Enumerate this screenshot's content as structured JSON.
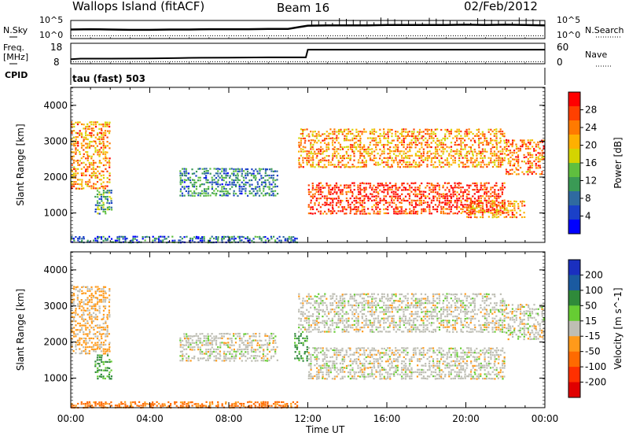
{
  "header": {
    "station": "Wallops Island (fitACF)",
    "beam": "Beam 16",
    "date": "02/Feb/2012"
  },
  "top_panel": {
    "left_label": "N.Sky",
    "right_label": "N.Search",
    "left_ticks": [
      "10^5",
      "10^0"
    ],
    "right_ticks": [
      "10^5",
      "10^0"
    ]
  },
  "freq_panel": {
    "left_label_1": "Freq.",
    "left_label_2": "[MHz]",
    "right_label": "Nave",
    "left_ticks": [
      "18",
      "8"
    ],
    "right_ticks": [
      "60",
      "0"
    ]
  },
  "cpid_panel": {
    "label": "CPID",
    "value": "tau (fast) 503"
  },
  "x_axis": {
    "ticks": [
      "00:00",
      "04:00",
      "08:00",
      "12:00",
      "16:00",
      "20:00",
      "00:00"
    ],
    "label": "Time UT"
  },
  "colorbars": {
    "power": {
      "label": "Power [dB]",
      "ticks": [
        "28",
        "24",
        "20",
        "16",
        "12",
        "8",
        "4"
      ],
      "colors": [
        "#ff0000",
        "#ff4000",
        "#ff7a00",
        "#ffb000",
        "#d4d400",
        "#5fbf3f",
        "#3a9a55",
        "#2f6aa0",
        "#1a40c8",
        "#0000ff"
      ]
    },
    "velocity": {
      "label": "Velocity [m s^-1]",
      "ticks": [
        "200",
        "100",
        "50",
        "15",
        "-15",
        "-50",
        "-100",
        "-200"
      ],
      "colors": [
        "#1a2fbf",
        "#1a5aa0",
        "#2f8a3a",
        "#66cc33",
        "#bebeb4",
        "#ff9a1a",
        "#ff6a00",
        "#ff3000",
        "#e00000"
      ]
    }
  },
  "chart_data": [
    {
      "type": "line",
      "title": "N.Sky / N.Search",
      "x": [
        0,
        1,
        2,
        3,
        4,
        5,
        6,
        7,
        8,
        9,
        10,
        11,
        12,
        13,
        14,
        15,
        16,
        17,
        18,
        19,
        20,
        21,
        22,
        23,
        24
      ],
      "series": [
        {
          "name": "N.Sky",
          "values": [
            2.5,
            2.6,
            2.5,
            2.4,
            2.4,
            2.5,
            2.5,
            2.6,
            2.6,
            2.6,
            2.7,
            2.7,
            3.8,
            3.9,
            3.9,
            3.9,
            4.0,
            4.0,
            4.0,
            4.0,
            4.1,
            4.0,
            4.1,
            4.0,
            3.9
          ]
        },
        {
          "name": "N.Search",
          "values": [
            0.4,
            0.4,
            0.4,
            0.4,
            0.4,
            0.4,
            0.4,
            0.4,
            0.4,
            0.4,
            0.4,
            0.4,
            0.4,
            0.4,
            0.4,
            0.4,
            0.4,
            0.4,
            0.4,
            0.4,
            0.4,
            0.4,
            0.4,
            0.4,
            0.4
          ]
        }
      ],
      "ylim": [
        0,
        5
      ]
    },
    {
      "type": "line",
      "title": "Freq. / Nave",
      "x": [
        0,
        0.5,
        2,
        4,
        5.5,
        6,
        8,
        10,
        11.9,
        12,
        14,
        16,
        18,
        20,
        22,
        24
      ],
      "series": [
        {
          "name": "Freq. [MHz]",
          "values": [
            10.2,
            10.5,
            10.5,
            10.6,
            10.8,
            10.9,
            11.0,
            11.1,
            11.1,
            14.9,
            14.9,
            14.9,
            14.9,
            14.9,
            14.9,
            14.9
          ]
        },
        {
          "name": "Nave",
          "values": [
            6,
            6,
            6,
            6,
            6,
            6,
            6,
            6,
            6,
            6,
            6,
            6,
            6,
            6,
            6,
            6
          ]
        }
      ],
      "ylim": [
        8,
        18
      ]
    },
    {
      "type": "heatmap",
      "title": "Power [dB]",
      "xlabel": "Time UT",
      "ylabel": "Slant Range [km]",
      "xlim": [
        0,
        24
      ],
      "ylim": [
        180,
        4500
      ],
      "x_ticks": [
        "00:00",
        "04:00",
        "08:00",
        "12:00",
        "16:00",
        "20:00",
        "00:00"
      ],
      "y_ticks": [
        1000,
        2000,
        3000,
        4000
      ],
      "echo_bands": [
        {
          "t_start": 0.0,
          "t_end": 2.0,
          "range_start": 1700,
          "range_end": 3600,
          "power": 22
        },
        {
          "t_start": 1.2,
          "t_end": 2.1,
          "range_start": 1000,
          "range_end": 1700,
          "power": 10
        },
        {
          "t_start": 5.5,
          "t_end": 10.5,
          "range_start": 1500,
          "range_end": 2300,
          "power": 8
        },
        {
          "t_start": 0.0,
          "t_end": 11.5,
          "range_start": 200,
          "range_end": 400,
          "power": 6
        },
        {
          "t_start": 11.5,
          "t_end": 22.0,
          "range_start": 2300,
          "range_end": 3400,
          "power": 22
        },
        {
          "t_start": 12.0,
          "t_end": 22.0,
          "range_start": 1000,
          "range_end": 1900,
          "power": 28
        },
        {
          "t_start": 22.0,
          "t_end": 24.0,
          "range_start": 2100,
          "range_end": 3100,
          "power": 24
        },
        {
          "t_start": 20.0,
          "t_end": 23.0,
          "range_start": 900,
          "range_end": 1400,
          "power": 22
        }
      ]
    },
    {
      "type": "heatmap",
      "title": "Velocity [m s^-1]",
      "xlabel": "Time UT",
      "ylabel": "Slant Range [km]",
      "xlim": [
        0,
        24
      ],
      "ylim": [
        180,
        4500
      ],
      "x_ticks": [
        "00:00",
        "04:00",
        "08:00",
        "12:00",
        "16:00",
        "20:00",
        "00:00"
      ],
      "y_ticks": [
        1000,
        2000,
        3000,
        4000
      ],
      "echo_bands": [
        {
          "t_start": 0.0,
          "t_end": 2.0,
          "range_start": 1700,
          "range_end": 3600,
          "velocity": -20
        },
        {
          "t_start": 1.2,
          "t_end": 2.1,
          "range_start": 1000,
          "range_end": 1700,
          "velocity": 50
        },
        {
          "t_start": 5.5,
          "t_end": 10.5,
          "range_start": 1500,
          "range_end": 2300,
          "velocity": 0
        },
        {
          "t_start": 0.0,
          "t_end": 11.5,
          "range_start": 200,
          "range_end": 400,
          "velocity": -60
        },
        {
          "t_start": 11.5,
          "t_end": 22.0,
          "range_start": 2300,
          "range_end": 3400,
          "velocity": 0
        },
        {
          "t_start": 12.0,
          "t_end": 22.0,
          "range_start": 1000,
          "range_end": 1900,
          "velocity": 0
        },
        {
          "t_start": 22.0,
          "t_end": 24.0,
          "range_start": 2100,
          "range_end": 3100,
          "velocity": 0
        },
        {
          "t_start": 11.3,
          "t_end": 12.0,
          "range_start": 1500,
          "range_end": 2300,
          "velocity": 50
        }
      ]
    }
  ]
}
